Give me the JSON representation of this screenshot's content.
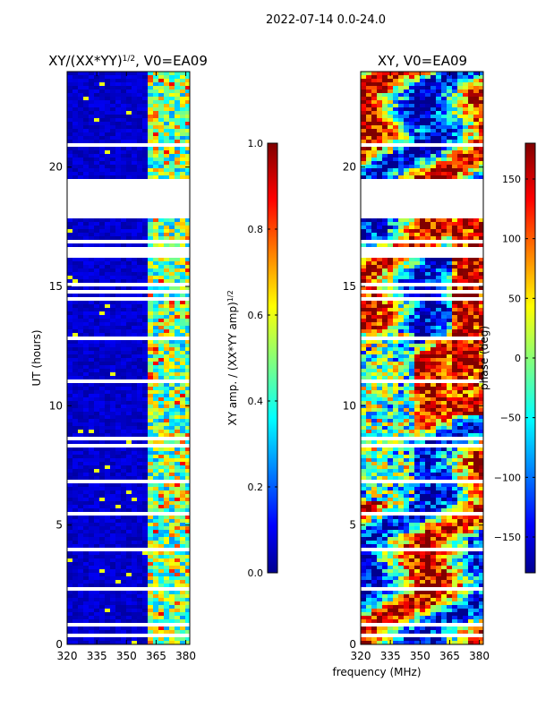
{
  "figure": {
    "suptitle": "2022-07-14 0.0-24.0",
    "xlabel": "frequency (MHz)"
  },
  "chart_data": [
    {
      "type": "heatmap",
      "title_main": "XY/(XX*YY)",
      "title_exp": "1/2",
      "title_suffix": ", V0=EA09",
      "xlabel": "frequency (MHz)",
      "ylabel": "UT (hours)",
      "xlim": [
        320,
        382
      ],
      "ylim": [
        0,
        24
      ],
      "xticks": [
        320,
        335,
        350,
        365,
        380
      ],
      "yticks": [
        0,
        5,
        10,
        15,
        20
      ],
      "colorbar": {
        "label_main": "XY amp. / (XX*YY amp)",
        "label_exp": "1/2",
        "range": [
          0.0,
          1.0
        ],
        "ticks": [
          "0.0",
          "0.2",
          "0.4",
          "0.6",
          "0.8",
          "1.0"
        ],
        "colormap": "jet"
      },
      "data_gaps_hours": [
        [
          17.8,
          19.5
        ]
      ]
    },
    {
      "type": "heatmap",
      "title": "XY, V0=EA09",
      "xlabel": "frequency (MHz)",
      "ylabel": "",
      "xlim": [
        320,
        382
      ],
      "ylim": [
        0,
        24
      ],
      "xticks": [
        320,
        335,
        350,
        365,
        380
      ],
      "yticks": [
        0,
        5,
        10,
        15,
        20
      ],
      "colorbar": {
        "label": "phase (deg)",
        "range": [
          -180,
          180
        ],
        "ticks": [
          "−150",
          "−100",
          "−50",
          "0",
          "50",
          "100",
          "150"
        ],
        "colormap": "jet"
      },
      "data_gaps_hours": [
        [
          17.8,
          19.5
        ]
      ]
    }
  ],
  "colors": {
    "jet_dark_blue": "#00008f",
    "jet_blue": "#0000ff",
    "jet_cyan": "#00ffff",
    "jet_yellow": "#ffff00",
    "jet_red": "#ff0000",
    "jet_dark_red": "#800000"
  }
}
